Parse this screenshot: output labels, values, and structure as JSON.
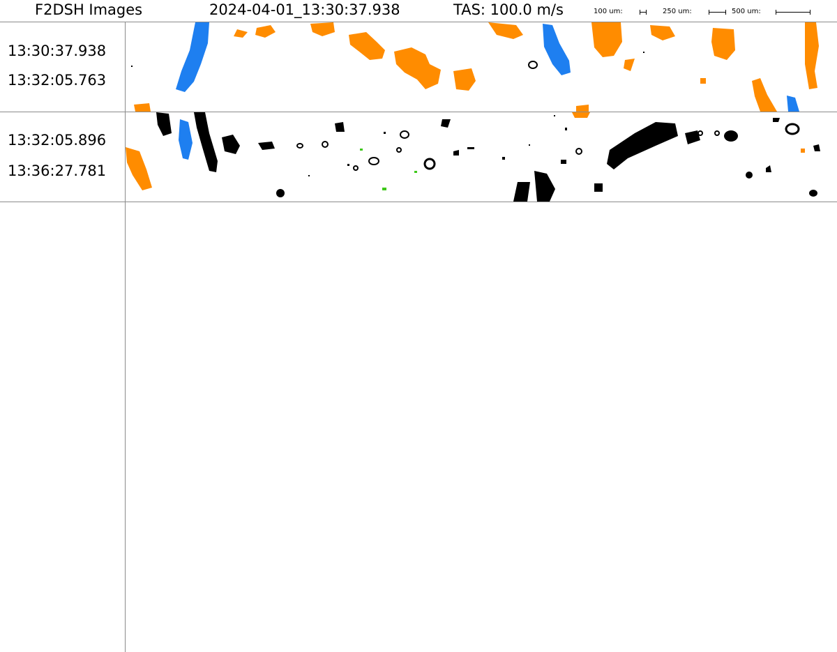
{
  "header": {
    "title": "F2DSH Images",
    "timestamp": "2024-04-01_13:30:37.938",
    "tas": "TAS: 100.0 m/s",
    "scale_bars": [
      {
        "label": "100 um:"
      },
      {
        "label": "250 um:"
      },
      {
        "label": "500 um:"
      }
    ]
  },
  "strips": [
    {
      "start_time": "13:30:37.938",
      "end_time": "13:32:05.763"
    },
    {
      "start_time": "13:32:05.896",
      "end_time": "13:36:27.781"
    }
  ],
  "colors": {
    "orange": "#ff8c00",
    "blue": "#1e7ff0",
    "black": "#000000",
    "green": "#3ec81a",
    "grid": "#8a8a8a"
  }
}
